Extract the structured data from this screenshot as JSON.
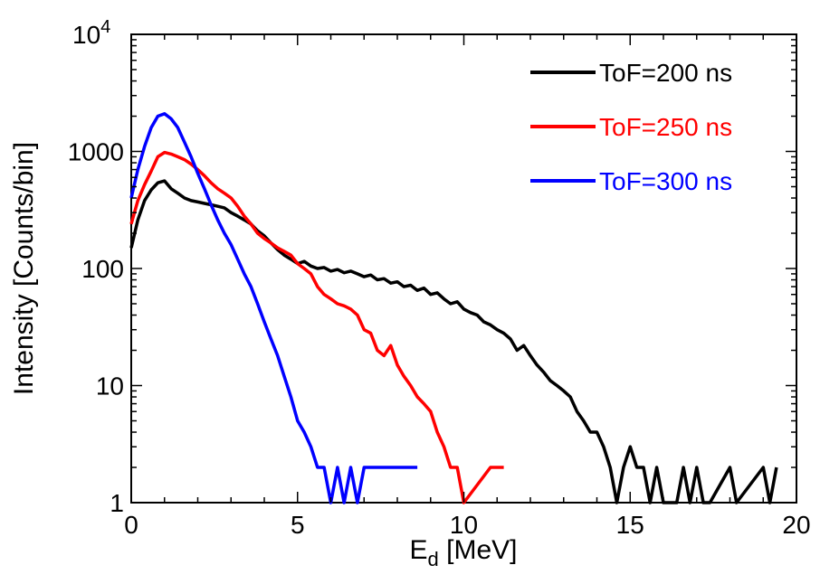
{
  "chart_data": {
    "type": "line",
    "title": "",
    "xlabel": "E",
    "xlabel_sub": "d",
    "xlabel_unit": " [MeV]",
    "ylabel": "Intensity [Counts/bin]",
    "xlim": [
      0,
      20
    ],
    "ylim": [
      1,
      10000
    ],
    "yscale": "log",
    "grid": false,
    "legend_position": "top-right",
    "x_ticks": [
      {
        "value": 0,
        "label": "0"
      },
      {
        "value": 5,
        "label": "5"
      },
      {
        "value": 10,
        "label": "10"
      },
      {
        "value": 15,
        "label": "15"
      },
      {
        "value": 20,
        "label": "20"
      }
    ],
    "y_ticks": [
      {
        "value": 1,
        "label": "1"
      },
      {
        "value": 10,
        "label": "10"
      },
      {
        "value": 100,
        "label": "100"
      },
      {
        "value": 1000,
        "label": "1000"
      }
    ],
    "y_top_tick": {
      "value": 10000,
      "base": "10",
      "exp": "4"
    },
    "series": [
      {
        "name": "ToF=200 ns",
        "color": "#000000",
        "points": [
          [
            0.0,
            150
          ],
          [
            0.2,
            260
          ],
          [
            0.4,
            380
          ],
          [
            0.6,
            470
          ],
          [
            0.8,
            540
          ],
          [
            1.0,
            560
          ],
          [
            1.2,
            480
          ],
          [
            1.4,
            440
          ],
          [
            1.6,
            400
          ],
          [
            1.8,
            380
          ],
          [
            2.0,
            370
          ],
          [
            2.2,
            360
          ],
          [
            2.4,
            350
          ],
          [
            2.6,
            340
          ],
          [
            2.8,
            330
          ],
          [
            3.0,
            300
          ],
          [
            3.2,
            280
          ],
          [
            3.4,
            260
          ],
          [
            3.6,
            240
          ],
          [
            3.8,
            210
          ],
          [
            4.0,
            190
          ],
          [
            4.2,
            165
          ],
          [
            4.4,
            145
          ],
          [
            4.6,
            130
          ],
          [
            4.8,
            120
          ],
          [
            5.0,
            110
          ],
          [
            5.2,
            115
          ],
          [
            5.4,
            105
          ],
          [
            5.6,
            100
          ],
          [
            5.8,
            102
          ],
          [
            6.0,
            95
          ],
          [
            6.2,
            98
          ],
          [
            6.4,
            92
          ],
          [
            6.6,
            95
          ],
          [
            6.8,
            90
          ],
          [
            7.0,
            85
          ],
          [
            7.2,
            88
          ],
          [
            7.4,
            80
          ],
          [
            7.6,
            82
          ],
          [
            7.8,
            75
          ],
          [
            8.0,
            77
          ],
          [
            8.2,
            70
          ],
          [
            8.4,
            72
          ],
          [
            8.6,
            65
          ],
          [
            8.8,
            68
          ],
          [
            9.0,
            60
          ],
          [
            9.2,
            62
          ],
          [
            9.4,
            55
          ],
          [
            9.6,
            50
          ],
          [
            9.8,
            52
          ],
          [
            10.0,
            45
          ],
          [
            10.2,
            42
          ],
          [
            10.4,
            40
          ],
          [
            10.6,
            35
          ],
          [
            10.8,
            33
          ],
          [
            11.0,
            30
          ],
          [
            11.2,
            28
          ],
          [
            11.4,
            25
          ],
          [
            11.6,
            20
          ],
          [
            11.8,
            22
          ],
          [
            12.0,
            18
          ],
          [
            12.2,
            15
          ],
          [
            12.4,
            13
          ],
          [
            12.6,
            11
          ],
          [
            12.8,
            10
          ],
          [
            13.0,
            9
          ],
          [
            13.2,
            8
          ],
          [
            13.4,
            6
          ],
          [
            13.6,
            5
          ],
          [
            13.8,
            4
          ],
          [
            14.0,
            4
          ],
          [
            14.2,
            3
          ],
          [
            14.4,
            2
          ],
          [
            14.6,
            1
          ],
          [
            14.8,
            2
          ],
          [
            15.0,
            3
          ],
          [
            15.2,
            2
          ],
          [
            15.4,
            2
          ],
          [
            15.6,
            1
          ],
          [
            15.8,
            2
          ],
          [
            16.0,
            1
          ],
          [
            16.2,
            1
          ],
          [
            16.4,
            1
          ],
          [
            16.6,
            2
          ],
          [
            16.8,
            1
          ],
          [
            17.0,
            2
          ],
          [
            17.2,
            1
          ],
          [
            17.4,
            1
          ],
          [
            18.0,
            2
          ],
          [
            18.2,
            1
          ],
          [
            19.0,
            2
          ],
          [
            19.2,
            1
          ],
          [
            19.4,
            2
          ]
        ]
      },
      {
        "name": "ToF=250 ns",
        "color": "#ff0000",
        "points": [
          [
            0.0,
            240
          ],
          [
            0.2,
            380
          ],
          [
            0.4,
            520
          ],
          [
            0.6,
            680
          ],
          [
            0.8,
            900
          ],
          [
            1.0,
            980
          ],
          [
            1.2,
            950
          ],
          [
            1.4,
            900
          ],
          [
            1.6,
            850
          ],
          [
            1.8,
            780
          ],
          [
            2.0,
            700
          ],
          [
            2.2,
            620
          ],
          [
            2.4,
            540
          ],
          [
            2.6,
            480
          ],
          [
            2.8,
            440
          ],
          [
            3.0,
            400
          ],
          [
            3.2,
            340
          ],
          [
            3.4,
            280
          ],
          [
            3.6,
            240
          ],
          [
            3.8,
            200
          ],
          [
            4.0,
            180
          ],
          [
            4.2,
            165
          ],
          [
            4.4,
            150
          ],
          [
            4.6,
            140
          ],
          [
            4.8,
            130
          ],
          [
            5.0,
            110
          ],
          [
            5.2,
            100
          ],
          [
            5.4,
            90
          ],
          [
            5.6,
            70
          ],
          [
            5.8,
            60
          ],
          [
            6.0,
            55
          ],
          [
            6.2,
            50
          ],
          [
            6.4,
            48
          ],
          [
            6.6,
            45
          ],
          [
            6.8,
            40
          ],
          [
            7.0,
            30
          ],
          [
            7.2,
            28
          ],
          [
            7.4,
            20
          ],
          [
            7.6,
            18
          ],
          [
            7.8,
            22
          ],
          [
            8.0,
            15
          ],
          [
            8.2,
            12
          ],
          [
            8.4,
            10
          ],
          [
            8.6,
            8
          ],
          [
            8.8,
            7
          ],
          [
            9.0,
            6
          ],
          [
            9.2,
            4
          ],
          [
            9.4,
            3
          ],
          [
            9.6,
            2
          ],
          [
            9.8,
            2
          ],
          [
            10.0,
            1
          ],
          [
            10.8,
            2
          ],
          [
            11.2,
            2
          ]
        ]
      },
      {
        "name": "ToF=300 ns",
        "color": "#0000ff",
        "points": [
          [
            0.0,
            400
          ],
          [
            0.2,
            700
          ],
          [
            0.4,
            1100
          ],
          [
            0.6,
            1600
          ],
          [
            0.8,
            2000
          ],
          [
            1.0,
            2100
          ],
          [
            1.2,
            1900
          ],
          [
            1.4,
            1600
          ],
          [
            1.6,
            1200
          ],
          [
            1.8,
            900
          ],
          [
            2.0,
            650
          ],
          [
            2.2,
            480
          ],
          [
            2.4,
            350
          ],
          [
            2.6,
            260
          ],
          [
            2.8,
            200
          ],
          [
            3.0,
            160
          ],
          [
            3.2,
            120
          ],
          [
            3.4,
            90
          ],
          [
            3.6,
            70
          ],
          [
            3.8,
            50
          ],
          [
            4.0,
            35
          ],
          [
            4.2,
            25
          ],
          [
            4.4,
            18
          ],
          [
            4.6,
            12
          ],
          [
            4.8,
            8
          ],
          [
            5.0,
            5
          ],
          [
            5.2,
            4
          ],
          [
            5.4,
            3
          ],
          [
            5.6,
            2
          ],
          [
            5.8,
            2
          ],
          [
            6.0,
            1
          ],
          [
            6.2,
            2
          ],
          [
            6.4,
            1
          ],
          [
            6.6,
            2
          ],
          [
            6.8,
            1
          ],
          [
            7.0,
            2
          ],
          [
            8.0,
            2
          ],
          [
            8.6,
            2
          ]
        ]
      }
    ]
  }
}
